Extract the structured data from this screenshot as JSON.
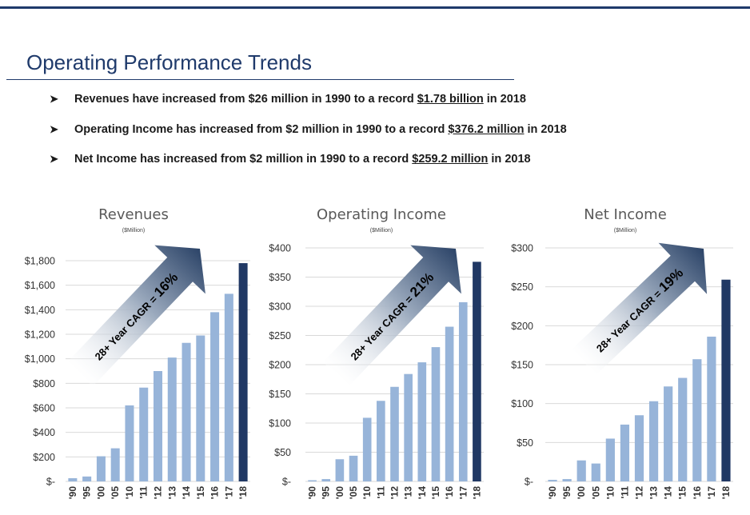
{
  "page": {
    "title": "Operating Performance Trends",
    "bullets": [
      {
        "pre": "Revenues have increased from $26 million in 1990 to a record ",
        "highlight": "$1.78 billion",
        "post": " in 2018"
      },
      {
        "pre": "Operating Income has increased from $2 million in 1990 to a record ",
        "highlight": "$376.2 million",
        "post": " in 2018"
      },
      {
        "pre": "Net Income has increased from $2 million in 1990 to a record ",
        "highlight": "$259.2 million",
        "post": " in 2018"
      }
    ],
    "bullet_icon": "arrow-bullet-icon"
  },
  "colors": {
    "title": "#1f3a6b",
    "bar_light": "#97b4d9",
    "bar_dark": "#203864",
    "gridline": "#d9d9d9",
    "arrow_light": "#ffffff",
    "arrow_dark": "#2c4468"
  },
  "chart_data": [
    {
      "type": "bar",
      "title": "Revenues",
      "subtitle": "($Million)",
      "categories": [
        "'90",
        "'95",
        "'00",
        "'05",
        "'10",
        "'11",
        "'12",
        "'13",
        "'14",
        "'15",
        "'16",
        "'17",
        "'18"
      ],
      "values": [
        26,
        40,
        205,
        270,
        620,
        765,
        900,
        1010,
        1130,
        1190,
        1380,
        1530,
        1780
      ],
      "highlight_index": 12,
      "ylim": [
        0,
        1800
      ],
      "ticks": [
        0,
        200,
        400,
        600,
        800,
        1000,
        1200,
        1400,
        1600,
        1800
      ],
      "tick_labels": [
        "$-",
        "$200",
        "$400",
        "$600",
        "$800",
        "$1,000",
        "$1,200",
        "$1,400",
        "$1,600",
        "$1,800"
      ],
      "grid": true,
      "annotation": {
        "prefix": "28+ Year CAGR = ",
        "value": "16%"
      }
    },
    {
      "type": "bar",
      "title": "Operating Income",
      "subtitle": "($Million)",
      "categories": [
        "'90",
        "'95",
        "'00",
        "'05",
        "'10",
        "'11",
        "'12",
        "'13",
        "'14",
        "'15",
        "'16",
        "'17",
        "'18"
      ],
      "values": [
        2,
        4,
        38,
        44,
        109,
        138,
        162,
        184,
        204,
        230,
        265,
        307,
        376.2
      ],
      "highlight_index": 12,
      "ylim": [
        0,
        400
      ],
      "ticks": [
        0,
        50,
        100,
        150,
        200,
        250,
        300,
        350,
        400
      ],
      "tick_labels": [
        "$-",
        "$50",
        "$100",
        "$150",
        "$200",
        "$250",
        "$300",
        "$350",
        "$400"
      ],
      "grid": true,
      "annotation": {
        "prefix": "28+ Year CAGR = ",
        "value": "21%"
      }
    },
    {
      "type": "bar",
      "title": "Net Income",
      "subtitle": "($Million)",
      "categories": [
        "'90",
        "'95",
        "'00",
        "'05",
        "'10",
        "'11",
        "'12",
        "'13",
        "'14",
        "'15",
        "'16",
        "'17",
        "'18"
      ],
      "values": [
        2,
        3,
        27,
        23,
        55,
        73,
        85,
        103,
        122,
        133,
        157,
        186,
        259.2
      ],
      "highlight_index": 12,
      "ylim": [
        0,
        300
      ],
      "ticks": [
        0,
        50,
        100,
        150,
        200,
        250,
        300
      ],
      "tick_labels": [
        "$-",
        "$50",
        "$100",
        "$150",
        "$200",
        "$250",
        "$300"
      ],
      "grid": true,
      "annotation": {
        "prefix": "28+ Year CAGR = ",
        "value": "19%"
      }
    }
  ]
}
